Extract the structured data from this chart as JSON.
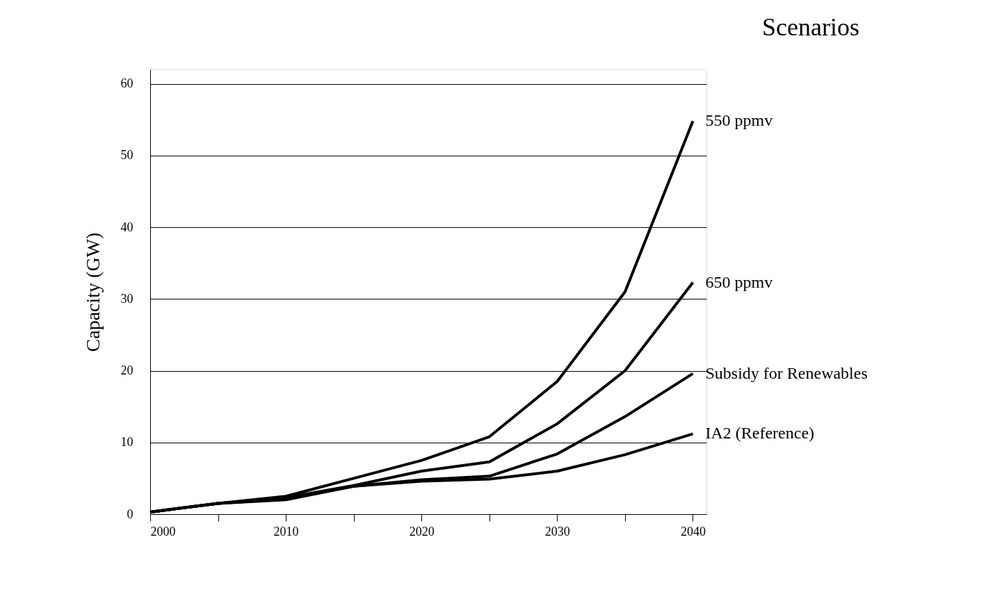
{
  "chart_data": {
    "type": "line",
    "ylabel": "Capacity (GW)",
    "legend_title": "Scenarios",
    "x": [
      2000,
      2005,
      2010,
      2015,
      2020,
      2025,
      2030,
      2035,
      2040
    ],
    "series": [
      {
        "name": "550 ppmv",
        "color": "#000000",
        "values": [
          0.3,
          1.5,
          2.5,
          5,
          7.5,
          10.8,
          18.5,
          31,
          54.8
        ]
      },
      {
        "name": "650 ppmv",
        "color": "#000000",
        "values": [
          0.3,
          1.5,
          2.3,
          4,
          6,
          7.3,
          12.6,
          20,
          32.3
        ]
      },
      {
        "name": "Subsidy for Renewables",
        "color": "#000000",
        "values": [
          0.3,
          1.5,
          2.1,
          3.9,
          4.8,
          5.3,
          8.4,
          13.6,
          19.6
        ]
      },
      {
        "name": "IA2 (Reference)",
        "color": "#000000",
        "values": [
          0.3,
          1.5,
          2,
          3.9,
          4.6,
          4.9,
          6,
          8.3,
          11.2
        ]
      }
    ],
    "xlim": [
      2000,
      2041
    ],
    "ylim": [
      0,
      62
    ],
    "xticks": [
      2000,
      {
        "value": 2005,
        "label": null
      },
      2010,
      {
        "value": 2015,
        "label": null
      },
      2020,
      {
        "value": 2025,
        "label": null
      },
      2030,
      {
        "value": 2035,
        "label": null
      },
      2040
    ],
    "yticks": [
      0,
      10,
      20,
      30,
      40,
      50,
      60
    ],
    "grid": "y",
    "legend": false,
    "marker": "none",
    "line_style": "solid"
  }
}
